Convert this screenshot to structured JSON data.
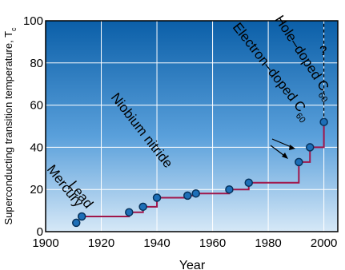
{
  "chart_data": {
    "type": "line",
    "title": "",
    "xlabel": "Year",
    "ylabel": "Superconducting transition temperature, T",
    "ylabel_subscript": "c",
    "xlim": [
      1900,
      2005
    ],
    "ylim": [
      0,
      100
    ],
    "x_ticks": [
      1900,
      1920,
      1940,
      1960,
      1980,
      2000
    ],
    "y_ticks": [
      0,
      20,
      40,
      60,
      80,
      100
    ],
    "grid": true,
    "points": [
      {
        "x": 1911,
        "y": 4.2
      },
      {
        "x": 1913,
        "y": 7.2
      },
      {
        "x": 1930,
        "y": 9.2
      },
      {
        "x": 1935,
        "y": 11.8
      },
      {
        "x": 1940,
        "y": 16.1
      },
      {
        "x": 1951,
        "y": 17.1
      },
      {
        "x": 1954,
        "y": 18.1
      },
      {
        "x": 1966,
        "y": 20.0
      },
      {
        "x": 1973,
        "y": 23.2
      },
      {
        "x": 1991,
        "y": 33.0
      },
      {
        "x": 1995,
        "y": 40.0
      },
      {
        "x": 2000,
        "y": 52.0
      }
    ],
    "question_mark": "?",
    "annotations": [
      {
        "text": "Mercury"
      },
      {
        "text": "Lead"
      },
      {
        "text": "Niobium nitride"
      },
      {
        "text": "Electron–doped C",
        "subscript": "60"
      },
      {
        "text": "Hole–doped C",
        "subscript": "60"
      }
    ],
    "colors": {
      "plot_bg_top": "#0b5fa8",
      "plot_bg_bottom": "#d6e8f7",
      "step_line": "#a0164a",
      "marker_fill": "#1d6fb8",
      "marker_stroke": "#06325c",
      "grid": "#ffffff"
    }
  }
}
